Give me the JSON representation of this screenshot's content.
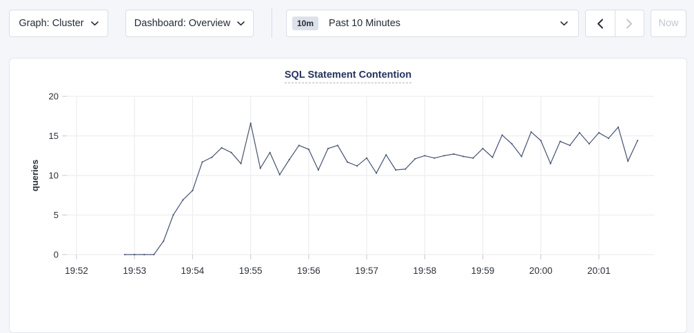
{
  "toolbar": {
    "graph_dropdown": {
      "label": "Graph: Cluster"
    },
    "dashboard_dropdown": {
      "label": "Dashboard: Overview"
    },
    "time_range": {
      "badge": "10m",
      "value": "Past 10 Minutes"
    },
    "now_button": "Now"
  },
  "chart_data": {
    "type": "line",
    "title": "SQL Statement Contention",
    "xlabel": "",
    "ylabel": "queries",
    "ylim": [
      0,
      20
    ],
    "yticks": [
      0,
      5,
      10,
      15,
      20
    ],
    "xticks": [
      "19:52",
      "19:53",
      "19:54",
      "19:55",
      "19:56",
      "19:57",
      "19:58",
      "19:59",
      "20:00",
      "20:01"
    ],
    "grid": true,
    "legend": "none",
    "series": [
      {
        "name": "SQL Statement Contention",
        "unit": "queries",
        "start_time": "19:52:50",
        "interval_seconds": 10,
        "values": [
          0,
          0,
          0,
          0,
          1.7,
          5,
          6.9,
          8.1,
          11.7,
          12.3,
          13.5,
          12.9,
          11.5,
          16.6,
          10.9,
          12.9,
          10.1,
          12,
          13.8,
          13.3,
          10.7,
          13.4,
          13.8,
          11.7,
          11.2,
          12.2,
          10.3,
          12.6,
          10.7,
          10.8,
          12.1,
          12.5,
          12.2,
          12.5,
          12.7,
          12.4,
          12.2,
          13.4,
          12.3,
          15.1,
          14,
          12.4,
          15.5,
          14.4,
          11.5,
          14.3,
          13.8,
          15.4,
          14,
          15.4,
          14.7,
          16.1,
          11.8,
          14.4
        ]
      }
    ]
  },
  "colors": {
    "page_bg": "#f4f6fa",
    "card_bg": "#ffffff",
    "button_border": "#d8dde6",
    "text": "#242a35",
    "disabled": "#c2c8d1",
    "title": "#25335e",
    "grid": "#ededf1",
    "tick": "#cdd1da",
    "axis_label": "#2b3039",
    "line": "#4a5674",
    "badge_bg": "#dde2ea"
  }
}
